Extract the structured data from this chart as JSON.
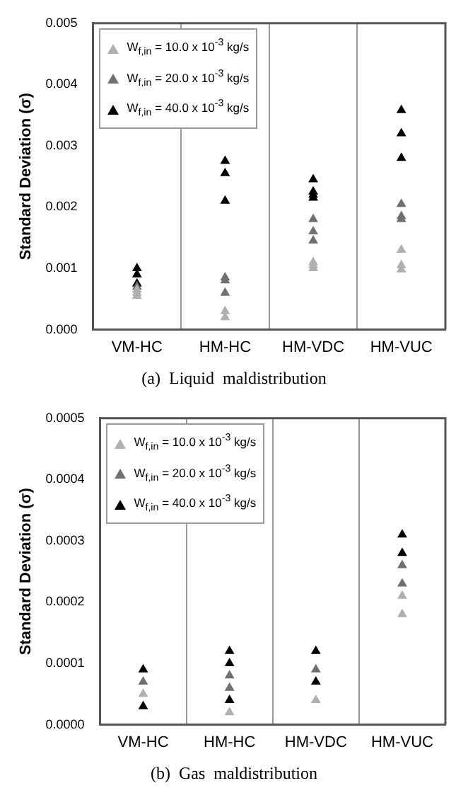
{
  "chart_data": [
    {
      "type": "scatter",
      "title": "(a)  Liquid  maldistribution",
      "ylabel": "Standard Deviation (σ)",
      "categories": [
        "VM-HC",
        "HM-HC",
        "HM-VDC",
        "HM-VUC"
      ],
      "ylim": [
        0,
        0.005
      ],
      "yticks": [
        {
          "value": 0,
          "label": "0.000"
        },
        {
          "value": 0.001,
          "label": "0.001"
        },
        {
          "value": 0.002,
          "label": "0.002"
        },
        {
          "value": 0.003,
          "label": "0.003"
        },
        {
          "value": 0.004,
          "label": "0.004"
        },
        {
          "value": 0.005,
          "label": "0.005"
        }
      ],
      "grid": "x",
      "legend": "top left",
      "marker": "triangle",
      "series": [
        {
          "name": "W$_{f,in}$ = 10.0 x 10$^{-3}$ kg/s",
          "color": "#b0b0b0",
          "x": [
            "VM-HC",
            "VM-HC",
            "VM-HC",
            "HM-HC",
            "HM-HC",
            "HM-VDC",
            "HM-VDC",
            "HM-VDC",
            "HM-VUC",
            "HM-VUC",
            "HM-VUC"
          ],
          "values": [
            0.00055,
            0.0006,
            0.00065,
            0.0002,
            0.0003,
            0.001,
            0.00105,
            0.0011,
            0.00098,
            0.00105,
            0.0013
          ]
        },
        {
          "name": "W$_{f,in}$ = 20.0 x 10$^{-3}$ kg/s",
          "color": "#707070",
          "x": [
            "VM-HC",
            "VM-HC",
            "VM-HC",
            "HM-HC",
            "HM-HC",
            "HM-HC",
            "HM-VDC",
            "HM-VDC",
            "HM-VDC",
            "HM-VUC",
            "HM-VUC",
            "HM-VUC"
          ],
          "values": [
            null,
            null,
            0.0007,
            0.0006,
            0.0008,
            0.00085,
            0.00145,
            0.0016,
            0.0018,
            0.0018,
            0.00185,
            0.00205
          ]
        },
        {
          "name": "W$_{f,in}$ = 40.0 x 10$^{-3}$ kg/s",
          "color": "#000000",
          "x": [
            "VM-HC",
            "VM-HC",
            "VM-HC",
            "VM-HC",
            "HM-HC",
            "HM-HC",
            "HM-HC",
            "HM-VDC",
            "HM-VDC",
            "HM-VDC",
            "HM-VDC",
            "HM-VUC",
            "HM-VUC",
            "HM-VUC"
          ],
          "values": [
            null,
            0.00075,
            0.0009,
            0.001,
            0.0021,
            0.00255,
            0.00275,
            0.00215,
            0.0022,
            0.00225,
            0.00245,
            0.0028,
            0.0032,
            0.00358
          ]
        }
      ]
    },
    {
      "type": "scatter",
      "title": "(b)  Gas  maldistribution",
      "ylabel": "Standard Deviation (σ)",
      "categories": [
        "VM-HC",
        "HM-HC",
        "HM-VDC",
        "HM-VUC"
      ],
      "ylim": [
        0,
        0.0005
      ],
      "yticks": [
        {
          "value": 0,
          "label": "0.0000"
        },
        {
          "value": 0.0001,
          "label": "0.0001"
        },
        {
          "value": 0.0002,
          "label": "0.0002"
        },
        {
          "value": 0.0003,
          "label": "0.0003"
        },
        {
          "value": 0.0004,
          "label": "0.0004"
        },
        {
          "value": 0.0005,
          "label": "0.0005"
        }
      ],
      "grid": "x",
      "legend": "top left",
      "marker": "triangle",
      "series": [
        {
          "name": "W$_{f,in}$ = 10.0 x 10$^{-3}$ kg/s",
          "color": "#b0b0b0",
          "x": [
            "VM-HC",
            "HM-HC",
            "HM-VDC",
            "HM-VUC",
            "HM-VUC"
          ],
          "values": [
            5e-05,
            2e-05,
            4e-05,
            0.00018,
            0.00021
          ]
        },
        {
          "name": "W$_{f,in}$ = 20.0 x 10$^{-3}$ kg/s",
          "color": "#707070",
          "x": [
            "VM-HC",
            "HM-HC",
            "HM-HC",
            "HM-VDC",
            "HM-VUC",
            "HM-VUC"
          ],
          "values": [
            7e-05,
            6e-05,
            8e-05,
            9e-05,
            0.00023,
            0.00026
          ]
        },
        {
          "name": "W$_{f,in}$ = 40.0 x 10$^{-3}$ kg/s",
          "color": "#000000",
          "x": [
            "VM-HC",
            "VM-HC",
            "HM-HC",
            "HM-HC",
            "HM-HC",
            "HM-VDC",
            "HM-VDC",
            "HM-VUC",
            "HM-VUC"
          ],
          "values": [
            3e-05,
            9e-05,
            4e-05,
            0.0001,
            0.00012,
            7e-05,
            0.00012,
            0.00028,
            0.00031
          ]
        }
      ]
    }
  ]
}
